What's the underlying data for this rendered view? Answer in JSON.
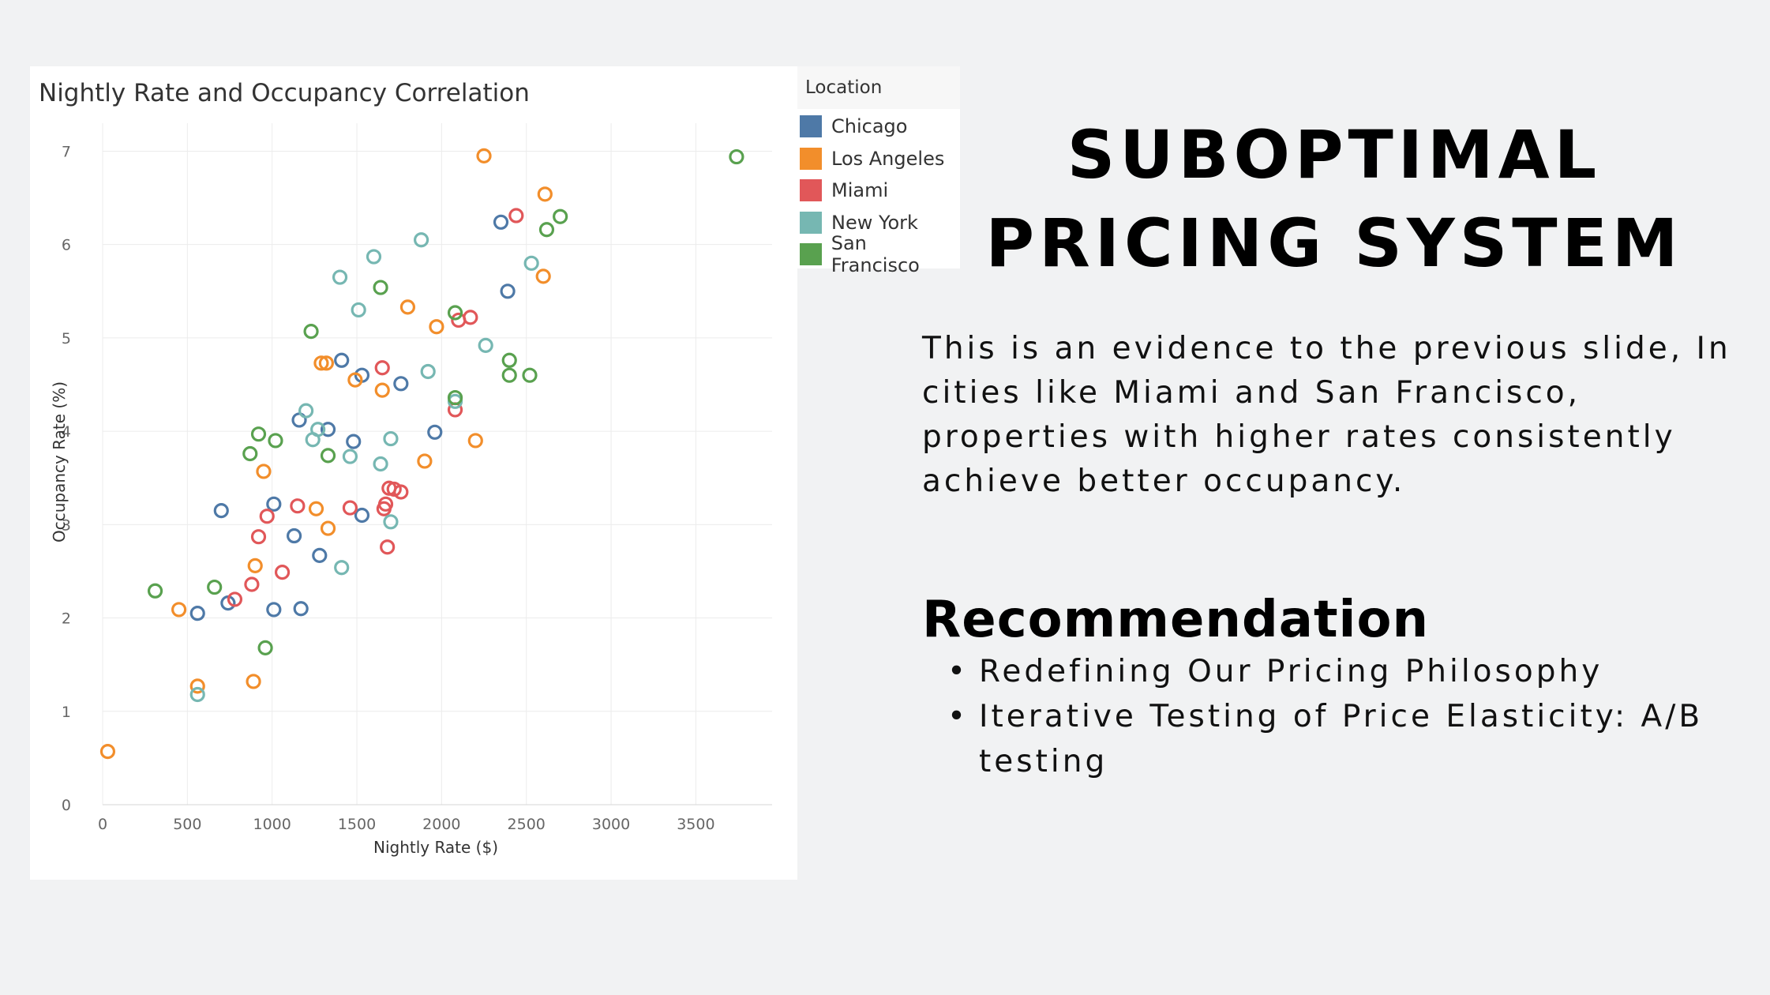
{
  "chart_data": {
    "type": "scatter",
    "title": "Nightly Rate and Occupancy Correlation",
    "xlabel": "Nightly Rate ($)",
    "ylabel": "Occupancy Rate (%)",
    "xlim": [
      0,
      3950
    ],
    "ylim": [
      0,
      7.3
    ],
    "xticks": [
      0,
      500,
      1000,
      1500,
      2000,
      2500,
      3000,
      3500
    ],
    "yticks": [
      0,
      1,
      2,
      3,
      4,
      5,
      6,
      7
    ],
    "grid": true,
    "legend_title": "Location",
    "legend_position": "top-right",
    "series": [
      {
        "name": "Chicago",
        "color": "#4e79a7",
        "points": [
          [
            560,
            2.05
          ],
          [
            700,
            3.15
          ],
          [
            740,
            2.16
          ],
          [
            1010,
            2.09
          ],
          [
            1010,
            3.22
          ],
          [
            1130,
            2.88
          ],
          [
            1170,
            2.1
          ],
          [
            1160,
            4.12
          ],
          [
            1280,
            2.67
          ],
          [
            1330,
            4.02
          ],
          [
            1410,
            4.76
          ],
          [
            1480,
            3.89
          ],
          [
            1530,
            4.6
          ],
          [
            1530,
            3.1
          ],
          [
            1760,
            4.51
          ],
          [
            1960,
            3.99
          ],
          [
            2350,
            6.24
          ],
          [
            2390,
            5.5
          ]
        ]
      },
      {
        "name": "Los Angeles",
        "color": "#f28e2b",
        "points": [
          [
            30,
            0.57
          ],
          [
            450,
            2.09
          ],
          [
            560,
            1.27
          ],
          [
            890,
            1.32
          ],
          [
            900,
            2.56
          ],
          [
            950,
            3.57
          ],
          [
            1260,
            3.17
          ],
          [
            1290,
            4.73
          ],
          [
            1320,
            4.73
          ],
          [
            1330,
            2.96
          ],
          [
            1490,
            4.55
          ],
          [
            1650,
            4.44
          ],
          [
            1800,
            5.33
          ],
          [
            1900,
            3.68
          ],
          [
            1970,
            5.12
          ],
          [
            2200,
            3.9
          ],
          [
            2250,
            6.95
          ],
          [
            2600,
            5.66
          ],
          [
            2610,
            6.54
          ]
        ]
      },
      {
        "name": "Miami",
        "color": "#e15759",
        "points": [
          [
            780,
            2.2
          ],
          [
            880,
            2.36
          ],
          [
            920,
            2.87
          ],
          [
            970,
            3.09
          ],
          [
            1060,
            2.49
          ],
          [
            1150,
            3.2
          ],
          [
            1460,
            3.18
          ],
          [
            1650,
            4.68
          ],
          [
            1660,
            3.17
          ],
          [
            1670,
            3.22
          ],
          [
            1680,
            2.76
          ],
          [
            1690,
            3.39
          ],
          [
            1720,
            3.38
          ],
          [
            1760,
            3.35
          ],
          [
            2080,
            4.23
          ],
          [
            2100,
            5.19
          ],
          [
            2170,
            5.22
          ],
          [
            2440,
            6.31
          ]
        ]
      },
      {
        "name": "New York",
        "color": "#76b7b2",
        "points": [
          [
            560,
            1.18
          ],
          [
            1200,
            4.22
          ],
          [
            1240,
            3.91
          ],
          [
            1270,
            4.02
          ],
          [
            1400,
            5.65
          ],
          [
            1410,
            2.54
          ],
          [
            1460,
            3.73
          ],
          [
            1510,
            5.3
          ],
          [
            1600,
            5.87
          ],
          [
            1640,
            3.65
          ],
          [
            1700,
            3.92
          ],
          [
            1700,
            3.03
          ],
          [
            1880,
            6.05
          ],
          [
            1920,
            4.64
          ],
          [
            2080,
            4.32
          ],
          [
            2260,
            4.92
          ],
          [
            2530,
            5.8
          ]
        ]
      },
      {
        "name": "San Francisco",
        "color": "#59a14f",
        "points": [
          [
            310,
            2.29
          ],
          [
            660,
            2.33
          ],
          [
            870,
            3.76
          ],
          [
            920,
            3.97
          ],
          [
            960,
            1.68
          ],
          [
            1020,
            3.9
          ],
          [
            1230,
            5.07
          ],
          [
            1330,
            3.74
          ],
          [
            1640,
            5.54
          ],
          [
            2080,
            5.27
          ],
          [
            2080,
            4.36
          ],
          [
            2400,
            4.6
          ],
          [
            2400,
            4.76
          ],
          [
            2520,
            4.6
          ],
          [
            2620,
            6.16
          ],
          [
            2700,
            6.3
          ],
          [
            3740,
            6.94
          ]
        ]
      }
    ]
  },
  "slide": {
    "title_line1": "SUBOPTIMAL",
    "title_line2": "PRICING SYSTEM",
    "body": "This is an evidence to the previous slide, In cities like Miami and San Francisco, properties with higher rates consistently achieve better occupancy.",
    "recommendation_heading": "Recommendation",
    "recommendations": [
      "Redefining Our Pricing Philosophy",
      "Iterative Testing of Price Elasticity: A/B testing"
    ]
  }
}
